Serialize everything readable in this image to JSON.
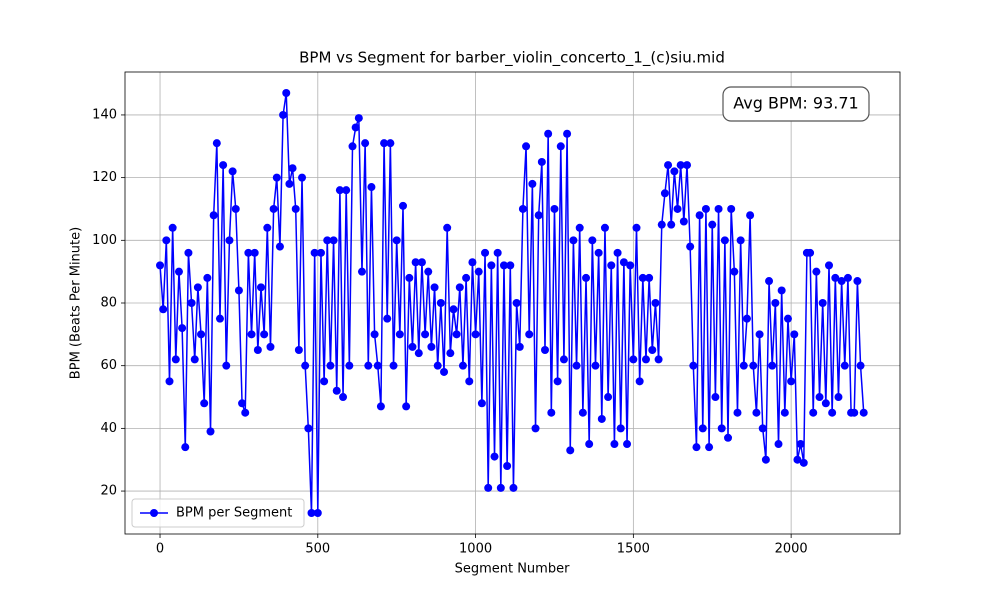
{
  "chart_data": {
    "type": "line",
    "title": "BPM vs Segment for barber_violin_concerto_1_(c)siu.mid",
    "x_label": "Segment Number",
    "y_label": "BPM (Beats Per Minute)",
    "annotation": "Avg BPM: 93.71",
    "legend": "lower left",
    "grid": true,
    "xlim": [
      -111,
      2345
    ],
    "ylim": [
      6.3,
      153.7
    ],
    "xticks": [
      0,
      500,
      1000,
      1500,
      2000
    ],
    "yticks": [
      20,
      40,
      60,
      80,
      100,
      120,
      140
    ],
    "x": [
      0,
      10,
      20,
      30,
      40,
      50,
      60,
      70,
      80,
      90,
      100,
      110,
      120,
      130,
      140,
      150,
      160,
      170,
      180,
      190,
      200,
      210,
      220,
      230,
      240,
      250,
      260,
      270,
      280,
      290,
      300,
      310,
      320,
      330,
      340,
      350,
      360,
      370,
      380,
      390,
      400,
      410,
      420,
      430,
      440,
      450,
      460,
      470,
      480,
      490,
      500,
      510,
      520,
      530,
      540,
      550,
      560,
      570,
      580,
      590,
      600,
      610,
      620,
      630,
      640,
      650,
      660,
      670,
      680,
      690,
      700,
      710,
      720,
      730,
      740,
      750,
      760,
      770,
      780,
      790,
      800,
      810,
      820,
      830,
      840,
      850,
      860,
      870,
      880,
      890,
      900,
      910,
      920,
      930,
      940,
      950,
      960,
      970,
      980,
      990,
      1000,
      1010,
      1020,
      1030,
      1040,
      1050,
      1060,
      1070,
      1080,
      1090,
      1100,
      1110,
      1120,
      1130,
      1140,
      1150,
      1160,
      1170,
      1180,
      1190,
      1200,
      1210,
      1220,
      1230,
      1240,
      1250,
      1260,
      1270,
      1280,
      1290,
      1300,
      1310,
      1320,
      1330,
      1340,
      1350,
      1360,
      1370,
      1380,
      1390,
      1400,
      1410,
      1420,
      1430,
      1440,
      1450,
      1460,
      1470,
      1480,
      1490,
      1500,
      1510,
      1520,
      1530,
      1540,
      1550,
      1560,
      1570,
      1580,
      1590,
      1600,
      1610,
      1620,
      1630,
      1640,
      1650,
      1660,
      1670,
      1680,
      1690,
      1700,
      1710,
      1720,
      1730,
      1740,
      1750,
      1760,
      1770,
      1780,
      1790,
      1800,
      1810,
      1820,
      1830,
      1840,
      1850,
      1860,
      1870,
      1880,
      1890,
      1900,
      1910,
      1920,
      1930,
      1940,
      1950,
      1960,
      1970,
      1980,
      1990,
      2000,
      2010,
      2020,
      2030,
      2040,
      2050,
      2060,
      2070,
      2080,
      2090,
      2100,
      2110,
      2120,
      2130,
      2140,
      2150,
      2160,
      2170,
      2180,
      2190,
      2200,
      2210,
      2220,
      2230
    ],
    "series": [
      {
        "name": "BPM per Segment",
        "color": "#0000ff",
        "values": [
          92,
          78,
          100,
          55,
          104,
          62,
          90,
          72,
          34,
          96,
          80,
          62,
          85,
          70,
          48,
          88,
          39,
          108,
          131,
          75,
          124,
          60,
          100,
          122,
          110,
          84,
          48,
          45,
          96,
          70,
          96,
          65,
          85,
          70,
          104,
          66,
          110,
          120,
          98,
          140,
          147,
          118,
          123,
          110,
          65,
          120,
          60,
          40,
          13,
          96,
          13,
          96,
          55,
          100,
          60,
          100,
          52,
          116,
          50,
          116,
          60,
          130,
          136,
          139,
          90,
          131,
          60,
          117,
          70,
          60,
          47,
          131,
          75,
          131,
          60,
          100,
          70,
          111,
          47,
          88,
          66,
          93,
          64,
          93,
          70,
          90,
          66,
          85,
          60,
          80,
          58,
          104,
          64,
          78,
          70,
          85,
          60,
          88,
          55,
          93,
          70,
          90,
          48,
          96,
          21,
          92,
          31,
          96,
          21,
          92,
          28,
          92,
          21,
          80,
          66,
          110,
          130,
          70,
          118,
          40,
          108,
          125,
          65,
          134,
          45,
          110,
          55,
          130,
          62,
          134,
          33,
          100,
          60,
          104,
          45,
          88,
          35,
          100,
          60,
          96,
          43,
          104,
          50,
          92,
          35,
          96,
          40,
          93,
          35,
          92,
          62,
          104,
          55,
          88,
          62,
          88,
          65,
          80,
          62,
          105,
          115,
          124,
          105,
          122,
          110,
          124,
          106,
          124,
          98,
          60,
          34,
          108,
          40,
          110,
          34,
          105,
          50,
          110,
          40,
          100,
          37,
          110,
          90,
          45,
          100,
          60,
          75,
          108,
          60,
          45,
          70,
          40,
          30,
          87,
          60,
          80,
          35,
          84,
          45,
          75,
          55,
          70,
          30,
          35,
          29,
          96,
          96,
          45,
          90,
          50,
          80,
          48,
          92,
          45,
          88,
          50,
          87,
          60,
          88,
          45,
          45,
          87,
          60,
          45
        ]
      }
    ]
  }
}
